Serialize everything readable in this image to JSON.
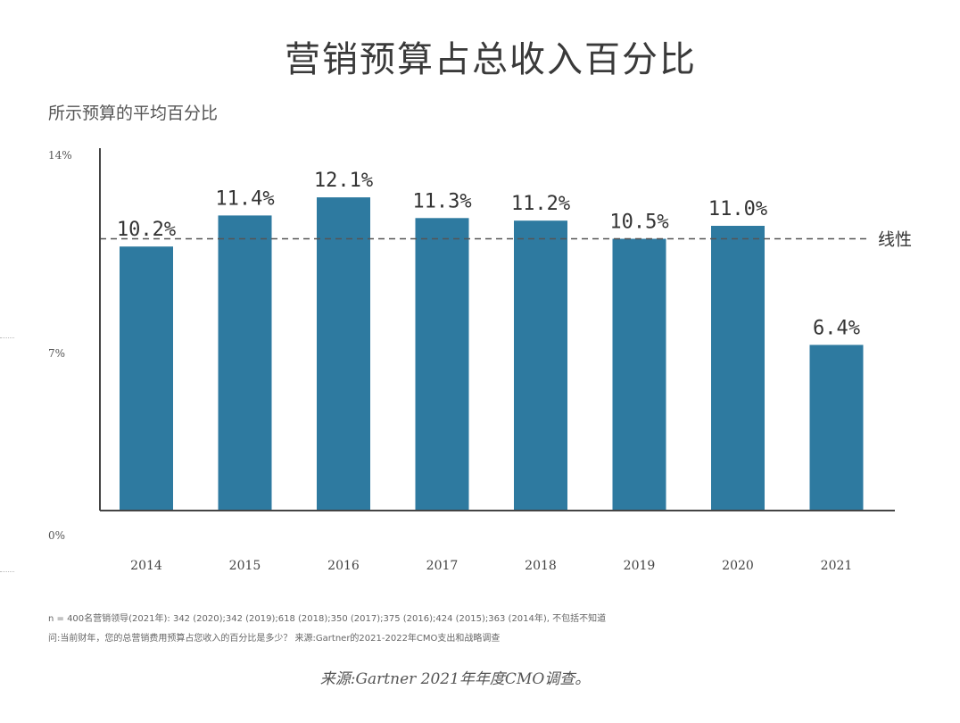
{
  "title": "营销预算占总收入百分比",
  "subtitle": "所示预算的平均百分比",
  "chart_data": {
    "type": "bar",
    "categories": [
      "2014",
      "2015",
      "2016",
      "2017",
      "2018",
      "2019",
      "2020",
      "2021"
    ],
    "values": [
      10.2,
      11.4,
      12.1,
      11.3,
      11.2,
      10.5,
      11.0,
      6.4
    ],
    "value_labels": [
      "10.2%",
      "11.4%",
      "12.1%",
      "11.3%",
      "11.2%",
      "10.5%",
      "11.0%",
      "6.4%"
    ],
    "y_ticks": [
      {
        "value": 0,
        "label": "0%"
      },
      {
        "value": 7,
        "label": "7%"
      },
      {
        "value": 14,
        "label": "14%"
      }
    ],
    "ylim": [
      0,
      14
    ],
    "trend_line": {
      "label": "线性",
      "value": 10.5,
      "style": "dashed"
    },
    "grid": false,
    "bar_color": "#2e7aa0"
  },
  "notes": {
    "line1": "n = 400名营销领导(2021年): 342 (2020);342 (2019);618 (2018);350 (2017);375 (2016);424 (2015);363 (2014年), 不包括不知道",
    "line2": "问:当前财年，您的总营销费用预算占您收入的百分比是多少？ 来源:Gartner的2021-2022年CMO支出和战略调查"
  },
  "source": "来源:Gartner 2021年年度CMO调查。"
}
